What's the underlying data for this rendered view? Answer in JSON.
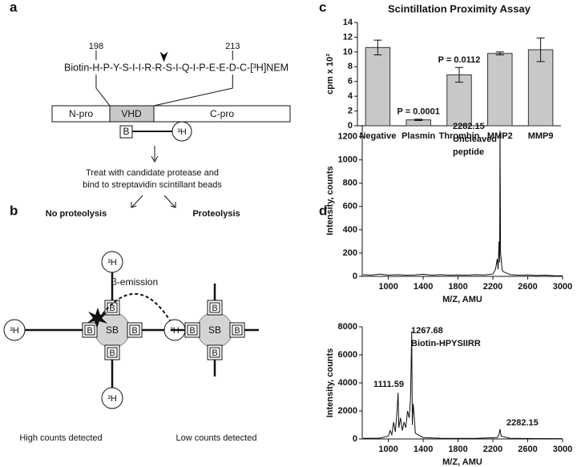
{
  "panel_labels": [
    "a",
    "b",
    "c",
    "d"
  ],
  "diagram_a": {
    "sequence": "Biotin-H-P-Y-S-I-I-R-R-S-I-Q-I-P-E-E-D-C-[³H]NEM",
    "start": "198",
    "end": "213",
    "domains": [
      "N-pro",
      "VHD",
      "C-pro"
    ]
  },
  "diagram_b": {
    "biotin": "B",
    "label": "³H",
    "step": [
      "Treat with candidate protease and",
      "bind to streptavidin scintillant beads"
    ],
    "left_branch": "No proteolysis",
    "right_branch": "Proteolysis",
    "emission": "β-emission",
    "bead": "SB",
    "left_result": "High counts detected",
    "right_result": "Low counts detected"
  },
  "chart_data": [
    {
      "type": "bar",
      "title": "Scintillation Proximity Assay",
      "ylabel": "cpm x 10³",
      "categories": [
        "Negative",
        "Plasmin",
        "Thrombin",
        "MMP2",
        "MMP9"
      ],
      "values": [
        10.6,
        0.8,
        6.9,
        9.8,
        10.3
      ],
      "errors": [
        1.0,
        0.1,
        1.0,
        0.2,
        1.6
      ],
      "notes": [
        null,
        "P = 0.0001",
        "P = 0.0112",
        null,
        null
      ],
      "color": "#c8c8c8",
      "ylim": [
        0,
        14
      ],
      "yticks": [
        0,
        2,
        4,
        6,
        8,
        10,
        12,
        14
      ]
    },
    {
      "type": "line",
      "xlabel": "M/Z, AMU",
      "ylabel": "Intensity, counts",
      "color": "#111111",
      "x": [
        710,
        800,
        900,
        1000,
        1100,
        1200,
        1300,
        1400,
        1500,
        1600,
        1700,
        1800,
        1900,
        2000,
        2100,
        2200,
        2230,
        2250,
        2260,
        2270,
        2277,
        2282,
        2288,
        2295,
        2305,
        2320,
        2400,
        2500,
        2600,
        2700,
        2800,
        2900,
        3000
      ],
      "values": [
        15,
        10,
        20,
        10,
        15,
        10,
        12,
        18,
        10,
        15,
        10,
        12,
        10,
        15,
        12,
        20,
        60,
        150,
        60,
        300,
        120,
        1250,
        200,
        150,
        60,
        40,
        15,
        10,
        12,
        8,
        10,
        6,
        5
      ],
      "annotations": [
        [
          "2282.15",
          "Uncleaved",
          "peptide"
        ]
      ],
      "xlim": [
        700,
        3000
      ],
      "xticks": [
        1000,
        1400,
        1800,
        2200,
        2600,
        3000
      ],
      "ylim": [
        0,
        1300
      ],
      "yticks": [
        0,
        200,
        400,
        600,
        800,
        1000,
        1200
      ]
    },
    {
      "type": "line",
      "xlabel": "M/Z, AMU",
      "ylabel": "Intensity, counts",
      "color": "#111111",
      "x": [
        710,
        900,
        1000,
        1020,
        1040,
        1060,
        1080,
        1100,
        1112,
        1120,
        1140,
        1160,
        1180,
        1200,
        1220,
        1240,
        1255,
        1268,
        1275,
        1285,
        1295,
        1310,
        1400,
        1600,
        2000,
        2250,
        2270,
        2282,
        2295,
        2400,
        2800,
        3000
      ],
      "values": [
        50,
        60,
        200,
        600,
        300,
        1200,
        500,
        2000,
        3300,
        800,
        1500,
        600,
        1200,
        800,
        2000,
        1500,
        3000,
        7700,
        1000,
        2500,
        1800,
        400,
        100,
        50,
        40,
        100,
        300,
        700,
        200,
        40,
        30,
        20
      ],
      "annotations": [
        [
          "1267.68",
          "Biotin-HPYSIIRR"
        ],
        [
          "1111.59"
        ],
        [
          "2282.15"
        ]
      ],
      "xlim": [
        700,
        3000
      ],
      "xticks": [
        1000,
        1400,
        1800,
        2200,
        2600,
        3000
      ],
      "ylim": [
        0,
        8000
      ],
      "yticks": [
        0,
        2000,
        4000,
        6000,
        8000
      ]
    }
  ]
}
